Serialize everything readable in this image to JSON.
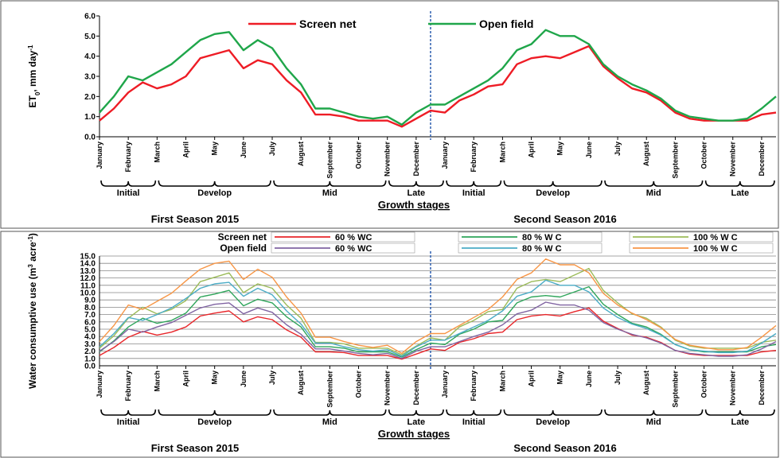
{
  "chart_data": [
    {
      "type": "line",
      "y_label": [
        {
          "text": "ET"
        },
        {
          "text": "0",
          "shift": "sub"
        },
        {
          "text": ", mm day"
        },
        {
          "text": "-1",
          "shift": "super"
        }
      ],
      "x_label": "Growth stages",
      "seasons": [
        "First  Season 2015",
        "Second Season 2016"
      ],
      "stages": [
        "Initial",
        "Develop",
        "Mid",
        "Late",
        "Initial",
        "Develop",
        "Mid",
        "Late"
      ],
      "categories": [
        "January",
        null,
        "February",
        null,
        "March",
        null,
        "April",
        null,
        "May",
        null,
        "June",
        null,
        "July",
        null,
        "August",
        null,
        "September",
        null,
        "October",
        null,
        "November",
        null,
        "December",
        null,
        "January",
        null,
        "February",
        null,
        "March",
        null,
        "April",
        null,
        "May",
        null,
        "June",
        null,
        "July",
        null,
        "August",
        null,
        "September",
        null,
        "October",
        null,
        "November",
        null,
        "December",
        null
      ],
      "ylim": [
        0,
        6
      ],
      "yticks": [
        {
          "value": 0,
          "label": "0.0"
        },
        {
          "value": 1,
          "label": "1.0"
        },
        {
          "value": 2,
          "label": "2.0"
        },
        {
          "value": 3,
          "label": "3.0"
        },
        {
          "value": 4,
          "label": "4.0"
        },
        {
          "value": 5,
          "label": "5.0"
        },
        {
          "value": 6,
          "label": "6.0"
        }
      ],
      "grid": false,
      "series": [
        {
          "name": "Screen net",
          "color": "#ee1c25",
          "values": [
            0.8,
            1.4,
            2.2,
            2.7,
            2.4,
            2.6,
            3.0,
            3.9,
            4.1,
            4.3,
            3.4,
            3.8,
            3.6,
            2.8,
            2.2,
            1.1,
            1.1,
            1.0,
            0.8,
            0.8,
            0.8,
            0.5,
            0.9,
            1.3,
            1.2,
            1.8,
            2.1,
            2.5,
            2.6,
            3.6,
            3.9,
            4.0,
            3.9,
            4.2,
            4.5,
            3.5,
            2.9,
            2.4,
            2.2,
            1.8,
            1.2,
            0.9,
            0.8,
            0.8,
            0.8,
            0.8,
            1.1,
            1.2
          ]
        },
        {
          "name": "Open field",
          "color": "#1fa64a",
          "values": [
            1.2,
            2.0,
            3.0,
            2.8,
            3.2,
            3.6,
            4.2,
            4.8,
            5.1,
            5.2,
            4.3,
            4.8,
            4.4,
            3.4,
            2.6,
            1.4,
            1.4,
            1.2,
            1.0,
            0.9,
            1.0,
            0.6,
            1.2,
            1.6,
            1.6,
            2.0,
            2.4,
            2.8,
            3.4,
            4.3,
            4.6,
            5.3,
            5.0,
            5.0,
            4.6,
            3.6,
            3.0,
            2.6,
            2.3,
            1.9,
            1.3,
            1.0,
            0.9,
            0.8,
            0.8,
            0.9,
            1.4,
            2.0
          ]
        }
      ]
    },
    {
      "type": "line",
      "y_label": [
        {
          "text": "Water consumptive use (m"
        },
        {
          "text": "3",
          "shift": "super"
        },
        {
          "text": " acre"
        },
        {
          "text": "-1",
          "shift": "super"
        },
        {
          "text": ")"
        }
      ],
      "x_label": "Growth stages",
      "seasons": [
        "First  Season 2015",
        "Second Season 2016"
      ],
      "stages": [
        "Initial",
        "Develop",
        "Mid",
        "Late",
        "Initial",
        "Develop",
        "Mid",
        "Late"
      ],
      "categories": [
        "January",
        null,
        "February",
        null,
        "March",
        null,
        "April",
        null,
        "May",
        null,
        "June",
        null,
        "July",
        null,
        "August",
        null,
        "September",
        null,
        "October",
        null,
        "November",
        null,
        "December",
        null,
        "January",
        null,
        "February",
        null,
        "March",
        null,
        "April",
        null,
        "May",
        null,
        "June",
        null,
        "July",
        null,
        "August",
        null,
        "September",
        null,
        "October",
        null,
        "November",
        null,
        "December",
        null
      ],
      "ylim": [
        0,
        15
      ],
      "yticks": [
        {
          "value": 0,
          "label": "0.0"
        },
        {
          "value": 1,
          "label": "1.0"
        },
        {
          "value": 2,
          "label": "2.0"
        },
        {
          "value": 3,
          "label": "3.0"
        },
        {
          "value": 4,
          "label": "4.0"
        },
        {
          "value": 5,
          "label": "5.0"
        },
        {
          "value": 6,
          "label": "6.0"
        },
        {
          "value": 7,
          "label": "7.0"
        },
        {
          "value": 8,
          "label": "8.0"
        },
        {
          "value": 9,
          "label": "9.0"
        },
        {
          "value": 10,
          "label": "10.0"
        },
        {
          "value": 11,
          "label": "11.0"
        },
        {
          "value": 12,
          "label": "12.0"
        },
        {
          "value": 13,
          "label": "13.0"
        },
        {
          "value": 14,
          "label": "14.0"
        },
        {
          "value": 15,
          "label": "15.0"
        }
      ],
      "grid": true,
      "series": [
        {
          "name": "60 % WC",
          "group": "Screen net",
          "color": "#e8262a",
          "values": [
            1.4,
            2.5,
            3.9,
            4.7,
            4.2,
            4.6,
            5.3,
            6.8,
            7.2,
            7.5,
            6.0,
            6.7,
            6.3,
            4.9,
            3.9,
            1.9,
            1.9,
            1.8,
            1.4,
            1.4,
            1.4,
            0.9,
            1.6,
            2.3,
            2.1,
            3.2,
            3.7,
            4.4,
            4.6,
            6.3,
            6.8,
            7.0,
            6.8,
            7.4,
            7.9,
            6.1,
            5.1,
            4.2,
            3.9,
            3.2,
            2.1,
            1.6,
            1.4,
            1.4,
            1.4,
            1.4,
            1.9,
            2.1
          ]
        },
        {
          "name": "80 % W C",
          "group": "Screen net",
          "color": "#2ea55a",
          "values": [
            1.9,
            3.4,
            5.3,
            6.5,
            5.8,
            6.2,
            7.2,
            9.4,
            9.8,
            10.3,
            8.2,
            9.1,
            8.6,
            6.7,
            5.3,
            2.6,
            2.6,
            2.4,
            1.9,
            1.9,
            1.9,
            1.2,
            2.2,
            3.1,
            2.9,
            4.3,
            5.0,
            6.0,
            6.2,
            8.6,
            9.4,
            9.6,
            9.4,
            10.1,
            10.8,
            8.4,
            7.0,
            5.8,
            5.3,
            4.3,
            2.9,
            2.2,
            1.9,
            1.9,
            1.9,
            1.9,
            2.6,
            2.9
          ]
        },
        {
          "name": "100 % W C",
          "group": "Screen net",
          "color": "#9bbb59",
          "values": [
            2.4,
            4.1,
            6.5,
            8.0,
            7.1,
            7.7,
            8.9,
            11.5,
            12.1,
            12.7,
            10.0,
            11.2,
            10.6,
            8.3,
            6.5,
            3.2,
            3.2,
            3.0,
            2.4,
            2.4,
            2.4,
            1.5,
            2.7,
            3.8,
            3.5,
            5.3,
            6.2,
            7.4,
            7.7,
            10.6,
            11.5,
            11.8,
            11.5,
            12.4,
            13.3,
            10.3,
            8.6,
            7.1,
            6.5,
            5.3,
            3.5,
            2.7,
            2.4,
            2.4,
            2.4,
            2.4,
            3.2,
            3.5
          ]
        },
        {
          "name": "60 % WC",
          "group": "Open field",
          "color": "#8064a2",
          "values": [
            2.0,
            3.3,
            5.0,
            4.6,
            5.3,
            5.9,
            6.9,
            7.9,
            8.4,
            8.6,
            7.1,
            7.9,
            7.3,
            5.6,
            4.3,
            2.3,
            2.3,
            2.0,
            1.7,
            1.5,
            1.7,
            1.0,
            2.0,
            2.6,
            2.6,
            3.3,
            4.0,
            4.6,
            5.6,
            7.1,
            7.6,
            8.7,
            8.3,
            8.3,
            7.6,
            5.9,
            5.0,
            4.3,
            3.8,
            3.1,
            2.1,
            1.7,
            1.5,
            1.3,
            1.3,
            1.5,
            2.3,
            3.3
          ]
        },
        {
          "name": "80 % W C",
          "group": "Open field",
          "color": "#4bacc6",
          "values": [
            2.6,
            4.4,
            6.6,
            6.2,
            7.0,
            7.9,
            9.2,
            10.6,
            11.2,
            11.4,
            9.5,
            10.6,
            9.7,
            7.5,
            5.7,
            3.1,
            3.1,
            2.6,
            2.2,
            2.0,
            2.2,
            1.3,
            2.6,
            3.5,
            3.5,
            4.4,
            5.3,
            6.2,
            7.5,
            9.5,
            10.1,
            11.7,
            11.0,
            11.0,
            10.1,
            7.9,
            6.6,
            5.7,
            5.1,
            4.2,
            2.9,
            2.2,
            2.0,
            1.8,
            1.8,
            2.0,
            3.1,
            4.4
          ]
        },
        {
          "name": "100 % W C",
          "group": "Open field",
          "color": "#f79646",
          "values": [
            3.3,
            5.5,
            8.3,
            7.7,
            8.8,
            9.9,
            11.6,
            13.2,
            14.0,
            14.3,
            11.8,
            13.2,
            12.1,
            9.4,
            7.2,
            3.9,
            3.9,
            3.3,
            2.8,
            2.5,
            2.8,
            1.7,
            3.3,
            4.4,
            4.4,
            5.5,
            6.6,
            7.7,
            9.4,
            11.8,
            12.7,
            14.6,
            13.8,
            13.8,
            12.7,
            9.9,
            8.3,
            7.2,
            6.3,
            5.2,
            3.6,
            2.8,
            2.5,
            2.2,
            2.2,
            2.5,
            3.9,
            5.5
          ]
        }
      ]
    }
  ]
}
